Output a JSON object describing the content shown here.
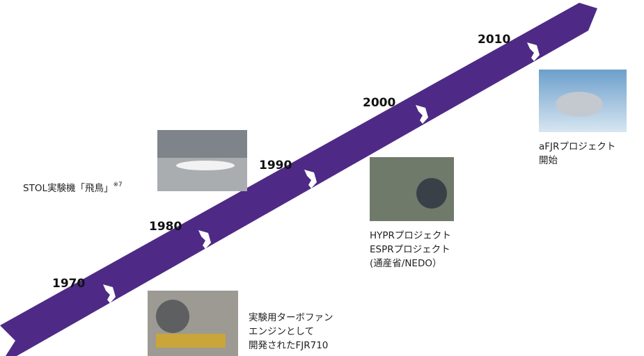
{
  "years": [
    "1970",
    "1980",
    "1990",
    "2000",
    "2010"
  ],
  "captions": {
    "stol": {
      "text": "STOL実験機「飛鳥」",
      "note": "※7"
    },
    "fjr710": {
      "lines": [
        "実験用ターボファン",
        "エンジンとして",
        "開発されたFJR710"
      ]
    },
    "hypr": {
      "lines": [
        "HYPRプロジェクト",
        "ESPRプロジェクト",
        "(通産省/NEDO）"
      ]
    },
    "afjr": {
      "lines": [
        "aFJRプロジェクト",
        "開始"
      ]
    }
  }
}
